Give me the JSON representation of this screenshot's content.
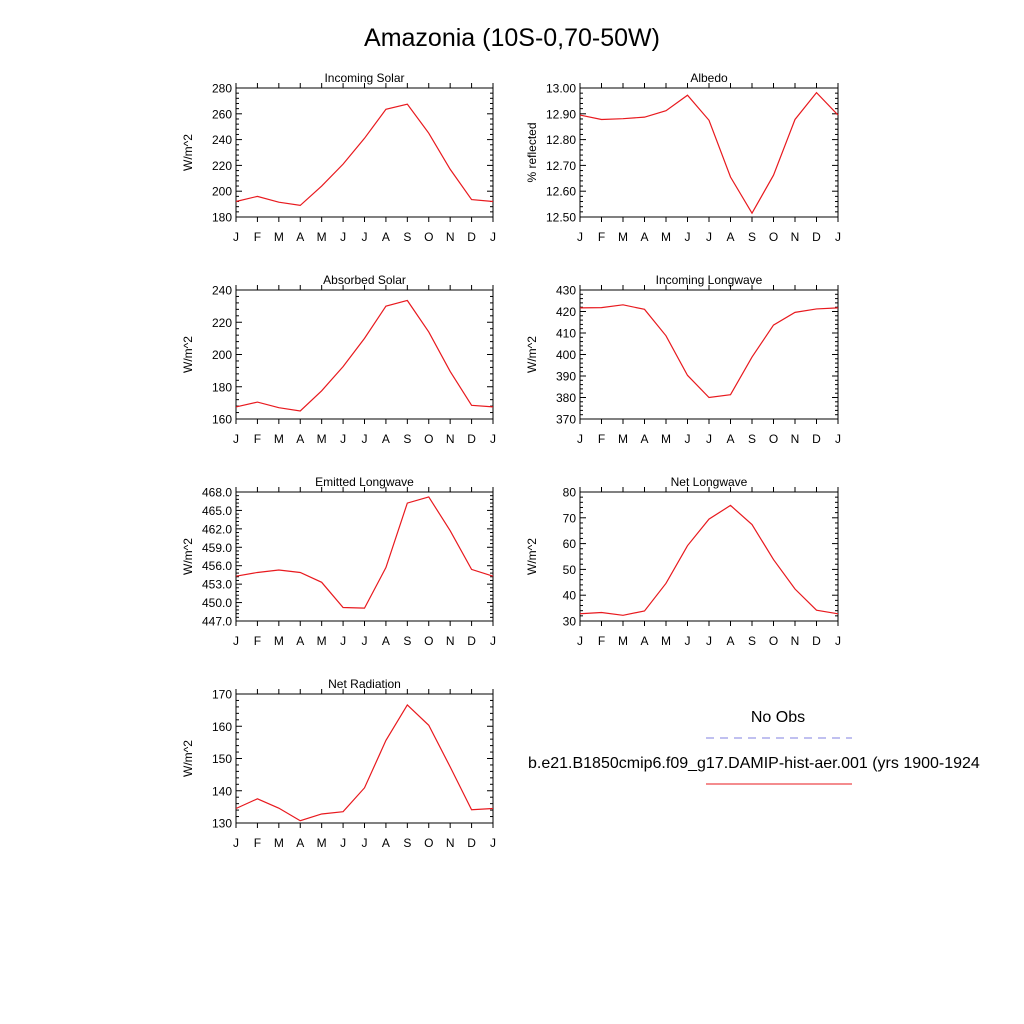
{
  "figure": {
    "title": "Amazonia (10S-0,70-50W)",
    "line_color": "#e8191e",
    "obs_color": "#8080e0"
  },
  "legend": {
    "obs_label": "No Obs",
    "model_label": "b.e21.B1850cmip6.f09_g17.DAMIP-hist-aer.001 (yrs 1900-1924"
  },
  "months": [
    "J",
    "F",
    "M",
    "A",
    "M",
    "J",
    "J",
    "A",
    "S",
    "O",
    "N",
    "D",
    "J"
  ],
  "chart_data": [
    {
      "type": "line",
      "title": "Incoming Solar",
      "xlabel": "",
      "ylabel": "W/m^2",
      "ylim": [
        180,
        280
      ],
      "yticks": [
        "180",
        "200",
        "220",
        "240",
        "260",
        "280"
      ],
      "categories": [
        "J",
        "F",
        "M",
        "A",
        "M",
        "J",
        "J",
        "A",
        "S",
        "O",
        "N",
        "D",
        "J"
      ],
      "values": [
        192,
        196,
        191.5,
        189,
        204,
        221,
        241,
        263.5,
        267.5,
        245,
        217,
        193.5,
        192
      ]
    },
    {
      "type": "line",
      "title": "Albedo",
      "xlabel": "",
      "ylabel": "% reflected",
      "ylim": [
        12.5,
        13.0
      ],
      "yticks": [
        "12.50",
        "12.60",
        "12.70",
        "12.80",
        "12.90",
        "13.00"
      ],
      "categories": [
        "J",
        "F",
        "M",
        "A",
        "M",
        "J",
        "J",
        "A",
        "S",
        "O",
        "N",
        "D",
        "J"
      ],
      "values": [
        12.895,
        12.878,
        12.881,
        12.887,
        12.912,
        12.972,
        12.875,
        12.655,
        12.515,
        12.662,
        12.878,
        12.982,
        12.895
      ]
    },
    {
      "type": "line",
      "title": "Absorbed Solar",
      "xlabel": "",
      "ylabel": "W/m^2",
      "ylim": [
        160,
        240
      ],
      "yticks": [
        "160",
        "180",
        "200",
        "220",
        "240"
      ],
      "categories": [
        "J",
        "F",
        "M",
        "A",
        "M",
        "J",
        "J",
        "A",
        "S",
        "O",
        "N",
        "D",
        "J"
      ],
      "values": [
        167.5,
        170.5,
        167,
        165,
        177.5,
        192.5,
        210,
        230,
        233.5,
        214,
        189.5,
        168.5,
        167.5
      ]
    },
    {
      "type": "line",
      "title": "Incoming Longwave",
      "xlabel": "",
      "ylabel": "W/m^2",
      "ylim": [
        370,
        430
      ],
      "yticks": [
        "370",
        "380",
        "390",
        "400",
        "410",
        "420",
        "430"
      ],
      "categories": [
        "J",
        "F",
        "M",
        "A",
        "M",
        "J",
        "J",
        "A",
        "S",
        "O",
        "N",
        "D",
        "J"
      ],
      "values": [
        421.7,
        421.8,
        423.1,
        421,
        408.7,
        390.3,
        380,
        381.3,
        398.8,
        413.7,
        419.6,
        421.2,
        421.7
      ]
    },
    {
      "type": "line",
      "title": "Emitted Longwave",
      "xlabel": "",
      "ylabel": "W/m^2",
      "ylim": [
        447,
        468
      ],
      "yticks": [
        "447.0",
        "450.0",
        "453.0",
        "456.0",
        "459.0",
        "462.0",
        "465.0",
        "468.0"
      ],
      "categories": [
        "J",
        "F",
        "M",
        "A",
        "M",
        "J",
        "J",
        "A",
        "S",
        "O",
        "N",
        "D",
        "J"
      ],
      "values": [
        454.3,
        454.9,
        455.3,
        454.9,
        453.3,
        449.2,
        449.1,
        455.7,
        466.2,
        467.2,
        461.7,
        455.4,
        454.3
      ]
    },
    {
      "type": "line",
      "title": "Net Longwave",
      "xlabel": "",
      "ylabel": "W/m^2",
      "ylim": [
        30,
        80
      ],
      "yticks": [
        "30",
        "40",
        "50",
        "60",
        "70",
        "80"
      ],
      "categories": [
        "J",
        "F",
        "M",
        "A",
        "M",
        "J",
        "J",
        "A",
        "S",
        "O",
        "N",
        "D",
        "J"
      ],
      "values": [
        32.8,
        33.3,
        32.2,
        33.9,
        44.6,
        59.2,
        69.5,
        74.8,
        67.4,
        53.8,
        42.4,
        34.2,
        32.8
      ]
    },
    {
      "type": "line",
      "title": "Net Radiation",
      "xlabel": "",
      "ylabel": "W/m^2",
      "ylim": [
        130,
        170
      ],
      "yticks": [
        "130",
        "140",
        "150",
        "160",
        "170"
      ],
      "categories": [
        "J",
        "F",
        "M",
        "A",
        "M",
        "J",
        "J",
        "A",
        "S",
        "O",
        "N",
        "D",
        "J"
      ],
      "values": [
        134.5,
        137.5,
        134.6,
        130.7,
        132.8,
        133.5,
        140.9,
        155.6,
        166.6,
        160.3,
        147.4,
        134.1,
        134.5
      ]
    }
  ]
}
